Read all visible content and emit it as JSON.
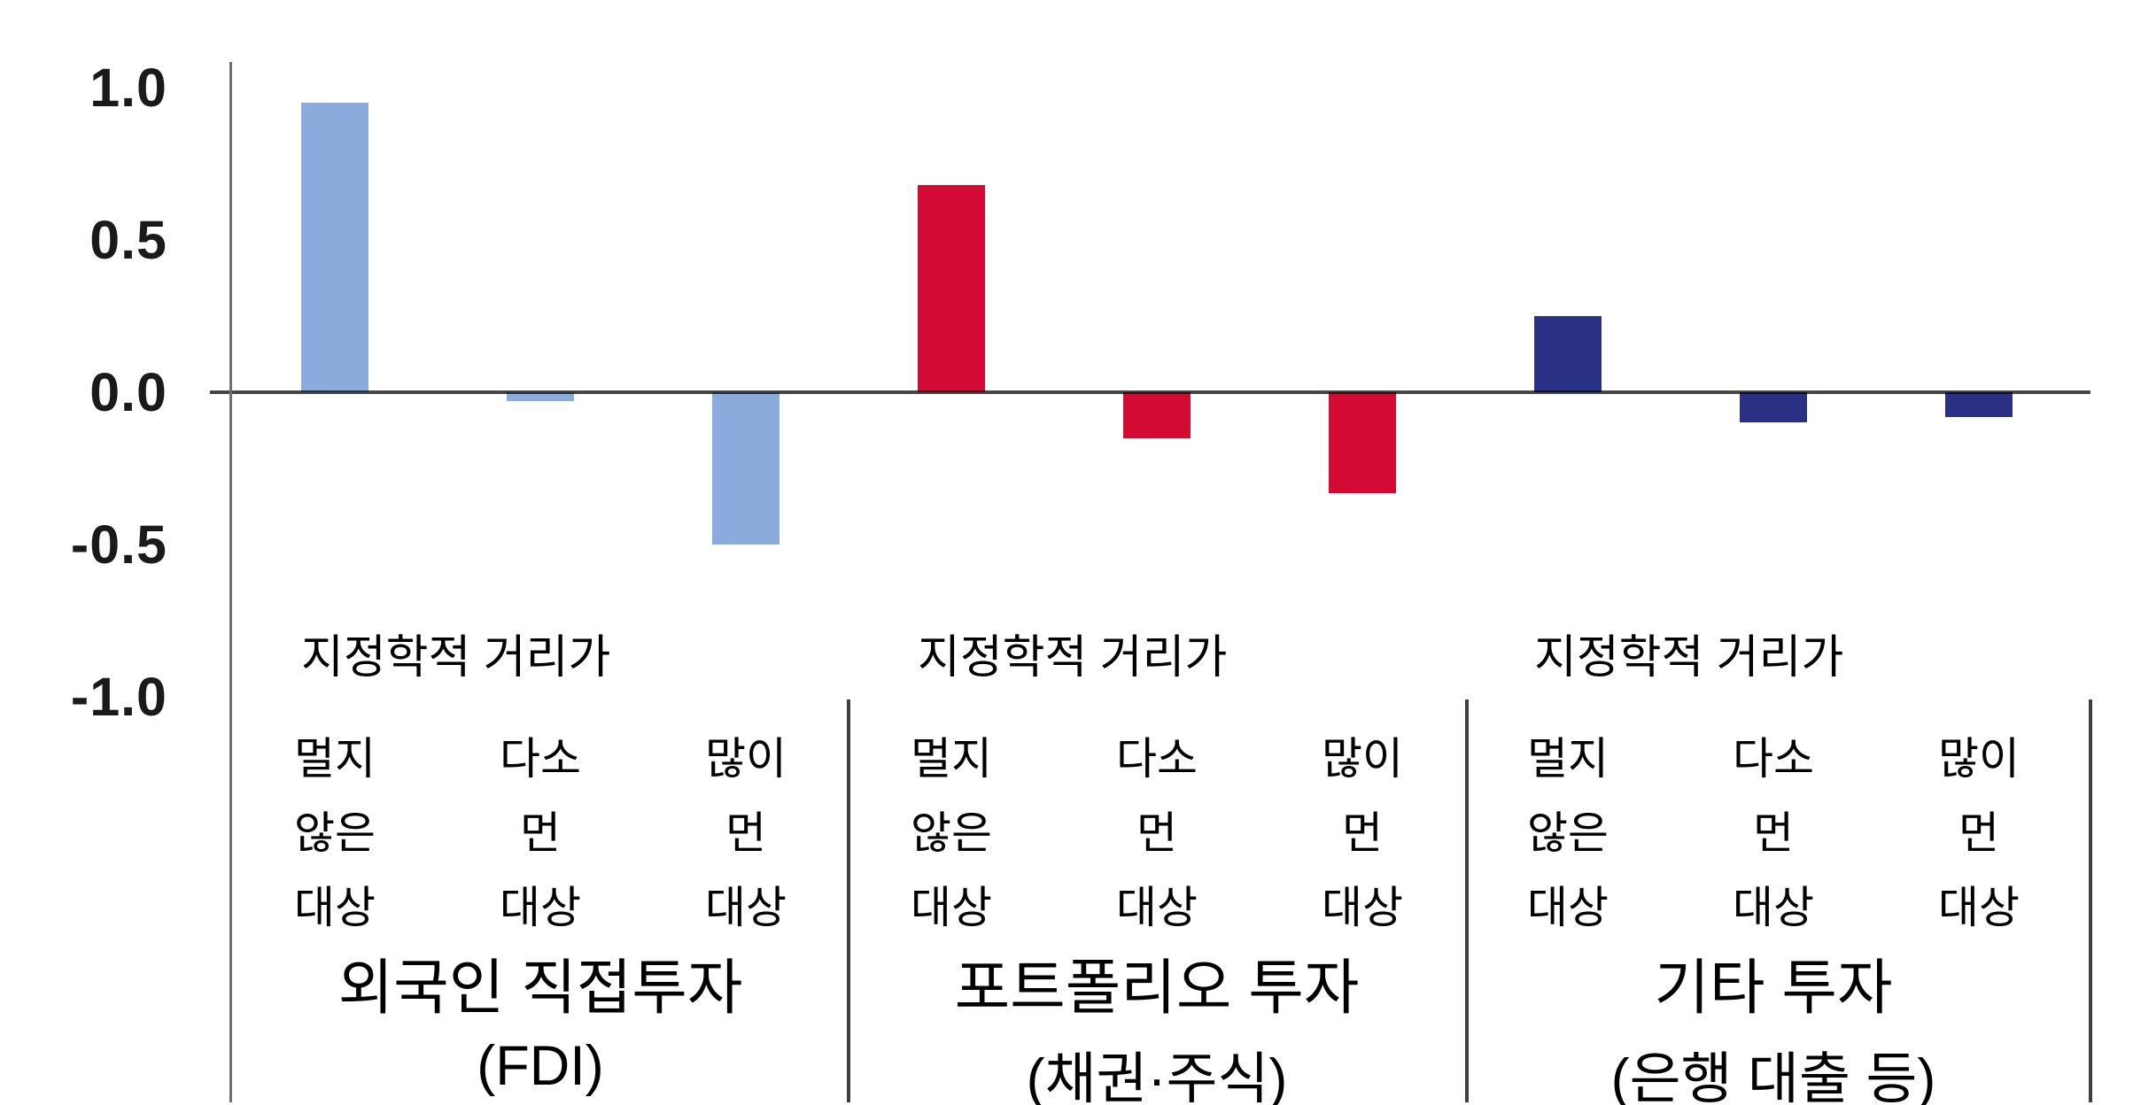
{
  "chart_data": {
    "type": "bar",
    "title": "",
    "xlabel": "",
    "ylabel": "",
    "ylim": [
      -1.0,
      1.0
    ],
    "grid": false,
    "legend": "none",
    "yticks": [
      {
        "label": "1.0",
        "value": 1.0
      },
      {
        "label": "0.5",
        "value": 0.5
      },
      {
        "label": "0.0",
        "value": 0.0
      },
      {
        "label": "-0.5",
        "value": -0.5
      },
      {
        "label": "-1.0",
        "value": -1.0
      }
    ],
    "group_header": "지정학적 거리가",
    "bar_labels": [
      {
        "lines": [
          "멀지",
          "않은",
          "대상"
        ]
      },
      {
        "lines": [
          "다소",
          "먼",
          "대상"
        ]
      },
      {
        "lines": [
          "많이",
          "먼",
          "대상"
        ]
      }
    ],
    "groups": [
      {
        "name": "외국인 직접투자",
        "subtitle": "(FDI)",
        "color": "#8aabdc",
        "values": [
          0.95,
          -0.03,
          -0.5
        ]
      },
      {
        "name": "포트폴리오 투자",
        "subtitle": "(채권·주식)",
        "color": "#d30a33",
        "values": [
          0.68,
          -0.15,
          -0.33
        ]
      },
      {
        "name": "기타 투자",
        "subtitle": "(은행 대출 등)",
        "color": "#2a3184",
        "values": [
          0.25,
          -0.1,
          -0.08
        ]
      }
    ]
  },
  "colors": {
    "background": "#ffffff",
    "axis": "#6f6f6f",
    "zero_line": "#464646",
    "separator": "#3f3f3f",
    "tick_text": "#1a1a1a",
    "label_text": "#000000"
  }
}
